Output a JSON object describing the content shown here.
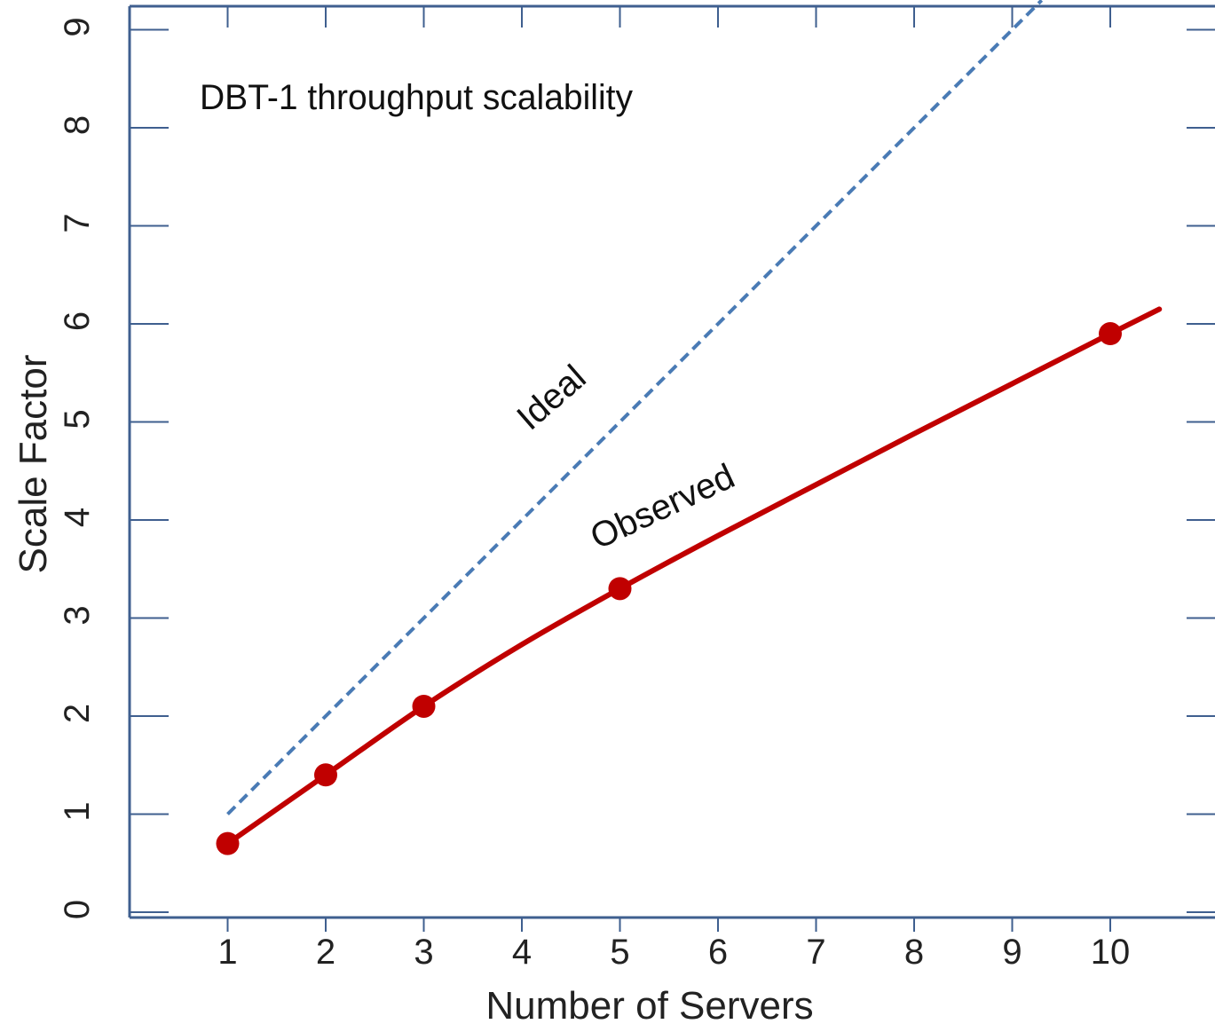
{
  "chart_data": {
    "type": "line",
    "title": "DBT-1 throughput scalability",
    "xlabel": "Number of Servers",
    "ylabel": "Scale Factor",
    "xlim": [
      0,
      10.5
    ],
    "ylim": [
      0,
      9
    ],
    "x_ticks": [
      "1",
      "2",
      "3",
      "4",
      "5",
      "6",
      "7",
      "8",
      "9",
      "10"
    ],
    "y_ticks": [
      "0",
      "1",
      "2",
      "3",
      "4",
      "5",
      "6",
      "7",
      "8",
      "9"
    ],
    "grid": false,
    "series": [
      {
        "name": "Ideal",
        "style": "dashed",
        "color": "#4a7bb5",
        "x": [
          1,
          9.3
        ],
        "y": [
          1,
          9.3
        ]
      },
      {
        "name": "Observed",
        "style": "solid",
        "color": "#c00000",
        "points_x": [
          1,
          2,
          3,
          5,
          10
        ],
        "points_y": [
          0.7,
          1.4,
          2.1,
          3.3,
          5.9
        ],
        "curve_x": [
          1,
          2,
          3,
          4,
          5,
          6,
          7,
          8,
          9,
          10,
          10.5
        ],
        "curve_y": [
          0.7,
          1.4,
          2.1,
          2.73,
          3.3,
          3.84,
          4.36,
          4.88,
          5.39,
          5.9,
          6.15
        ]
      }
    ],
    "colors": {
      "axis": "#3f5f8f",
      "ideal": "#4a7bb5",
      "observed": "#c00000"
    }
  }
}
